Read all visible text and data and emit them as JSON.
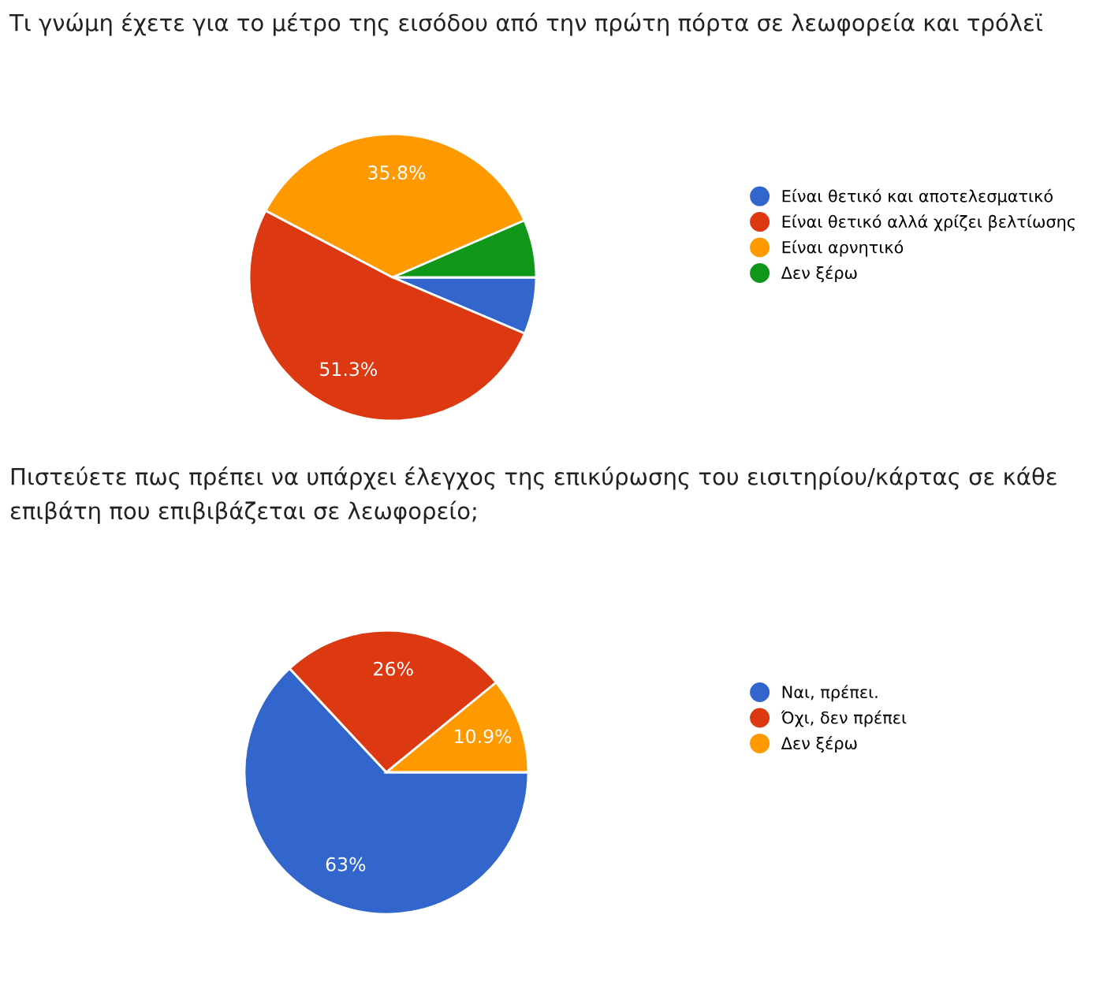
{
  "chart_data": [
    {
      "type": "pie",
      "title": "Τι γνώμη έχετε για το μέτρο της εισόδου από την πρώτη πόρτα σε λεωφορεία και τρόλεϊ",
      "categories": [
        "Είναι θετικό και αποτελεσματικό",
        "Είναι θετικό αλλά χρίζει βελτίωσης",
        "Είναι αρνητικό",
        "Δεν ξέρω"
      ],
      "values": [
        6.4,
        51.3,
        35.8,
        6.5
      ],
      "colors": [
        "#3366cc",
        "#dc3912",
        "#ff9900",
        "#109618"
      ],
      "value_labels": [
        null,
        "51.3%",
        "35.8%",
        null
      ],
      "legend": "right"
    },
    {
      "type": "pie",
      "title": "Πιστεύετε πως πρέπει να υπάρχει έλεγχος της επικύρωσης του εισιτηρίου/κάρτας σε κάθε επιβάτη που επιβιβάζεται σε λεωφορείο;",
      "categories": [
        "Ναι, πρέπει.",
        "Όχι, δεν πρέπει",
        "Δεν ξέρω"
      ],
      "values": [
        63,
        26,
        10.9
      ],
      "colors": [
        "#3366cc",
        "#dc3912",
        "#ff9900"
      ],
      "value_labels": [
        "63%",
        "26%",
        "10.9%"
      ],
      "legend": "right"
    }
  ]
}
